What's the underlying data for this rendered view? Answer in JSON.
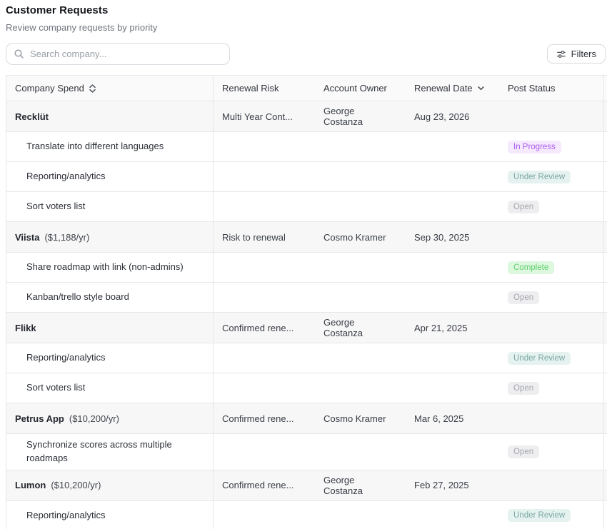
{
  "page": {
    "title": "Customer Requests",
    "subtitle": "Review company requests by priority"
  },
  "toolbar": {
    "search_placeholder": "Search company...",
    "filters_label": "Filters"
  },
  "table": {
    "columns": [
      {
        "label": "Company Spend",
        "sort_icon": "chevrons-up-down"
      },
      {
        "label": "Renewal Risk"
      },
      {
        "label": "Account Owner"
      },
      {
        "label": "Renewal Date",
        "sort_icon": "chevron-down"
      },
      {
        "label": "Post Status"
      }
    ],
    "status_styles": {
      "In Progress": {
        "bg": "#f5e9fe",
        "text": "#ab5cf0"
      },
      "Under Review": {
        "bg": "#e6f2f0",
        "text": "#7aa8a3"
      },
      "Open": {
        "bg": "#eeeef0",
        "text": "#a4a7ac"
      },
      "Complete": {
        "bg": "#ddf8df",
        "text": "#5fd06c"
      }
    },
    "groups": [
      {
        "company": "Recklüt",
        "spend": "",
        "renewal_risk": "Multi Year Cont...",
        "account_owner": "George Costanza",
        "renewal_date": "Aug 23, 2026",
        "requests": [
          {
            "title": "Translate into different languages",
            "status": "In Progress"
          },
          {
            "title": "Reporting/analytics",
            "status": "Under Review"
          },
          {
            "title": "Sort voters list",
            "status": "Open"
          }
        ]
      },
      {
        "company": "Viista",
        "spend": "($1,188/yr)",
        "renewal_risk": "Risk to renewal",
        "account_owner": "Cosmo Kramer",
        "renewal_date": "Sep 30, 2025",
        "requests": [
          {
            "title": "Share roadmap with link (non-admins)",
            "status": "Complete"
          },
          {
            "title": "Kanban/trello style board",
            "status": "Open"
          }
        ]
      },
      {
        "company": "Flikk",
        "spend": "",
        "renewal_risk": "Confirmed rene...",
        "account_owner": "George Costanza",
        "renewal_date": "Apr 21, 2025",
        "requests": [
          {
            "title": "Reporting/analytics",
            "status": "Under Review"
          },
          {
            "title": "Sort voters list",
            "status": "Open"
          }
        ]
      },
      {
        "company": "Petrus App",
        "spend": "($10,200/yr)",
        "renewal_risk": "Confirmed rene...",
        "account_owner": "Cosmo Kramer",
        "renewal_date": "Mar 6, 2025",
        "requests": [
          {
            "title": "Synchronize scores across multiple roadmaps",
            "status": "Open"
          }
        ]
      },
      {
        "company": "Lumon",
        "spend": "($10,200/yr)",
        "renewal_risk": "Confirmed rene...",
        "account_owner": "George Costanza",
        "renewal_date": "Feb 27, 2025",
        "requests": [
          {
            "title": "Reporting/analytics",
            "status": "Under Review"
          }
        ]
      }
    ]
  }
}
